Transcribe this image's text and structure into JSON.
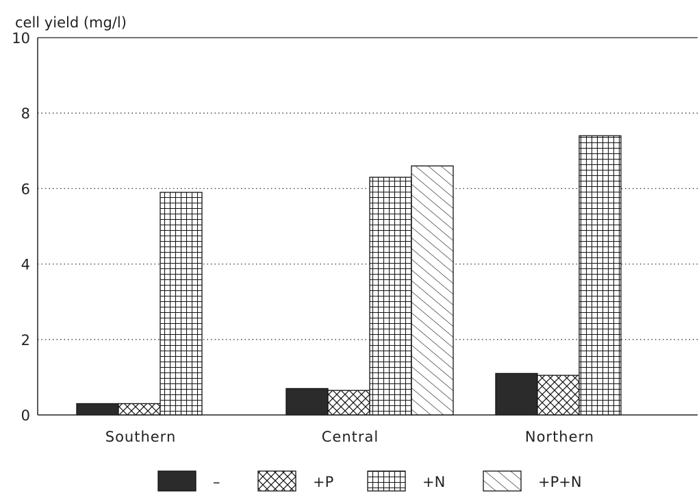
{
  "chart_data": {
    "type": "bar",
    "ylabel": "cell yield (mg/l)",
    "xlabel": "",
    "ylim": [
      0,
      10
    ],
    "yticks": [
      0,
      2,
      4,
      6,
      8,
      10
    ],
    "grid": "horizontal dotted at 2, 4, 6, 8",
    "legend": "bottom",
    "categories": [
      "Southern",
      "Central",
      "Northern"
    ],
    "series": [
      {
        "name": "–",
        "pattern": "solid",
        "values": [
          0.3,
          0.7,
          1.1
        ]
      },
      {
        "name": "+P",
        "pattern": "crosshatch",
        "values": [
          0.3,
          0.65,
          1.05
        ]
      },
      {
        "name": "+N",
        "pattern": "grid",
        "values": [
          5.9,
          6.3,
          7.4
        ]
      },
      {
        "name": "+P+N",
        "pattern": "diagonal",
        "values": [
          null,
          6.6,
          null
        ]
      }
    ]
  }
}
